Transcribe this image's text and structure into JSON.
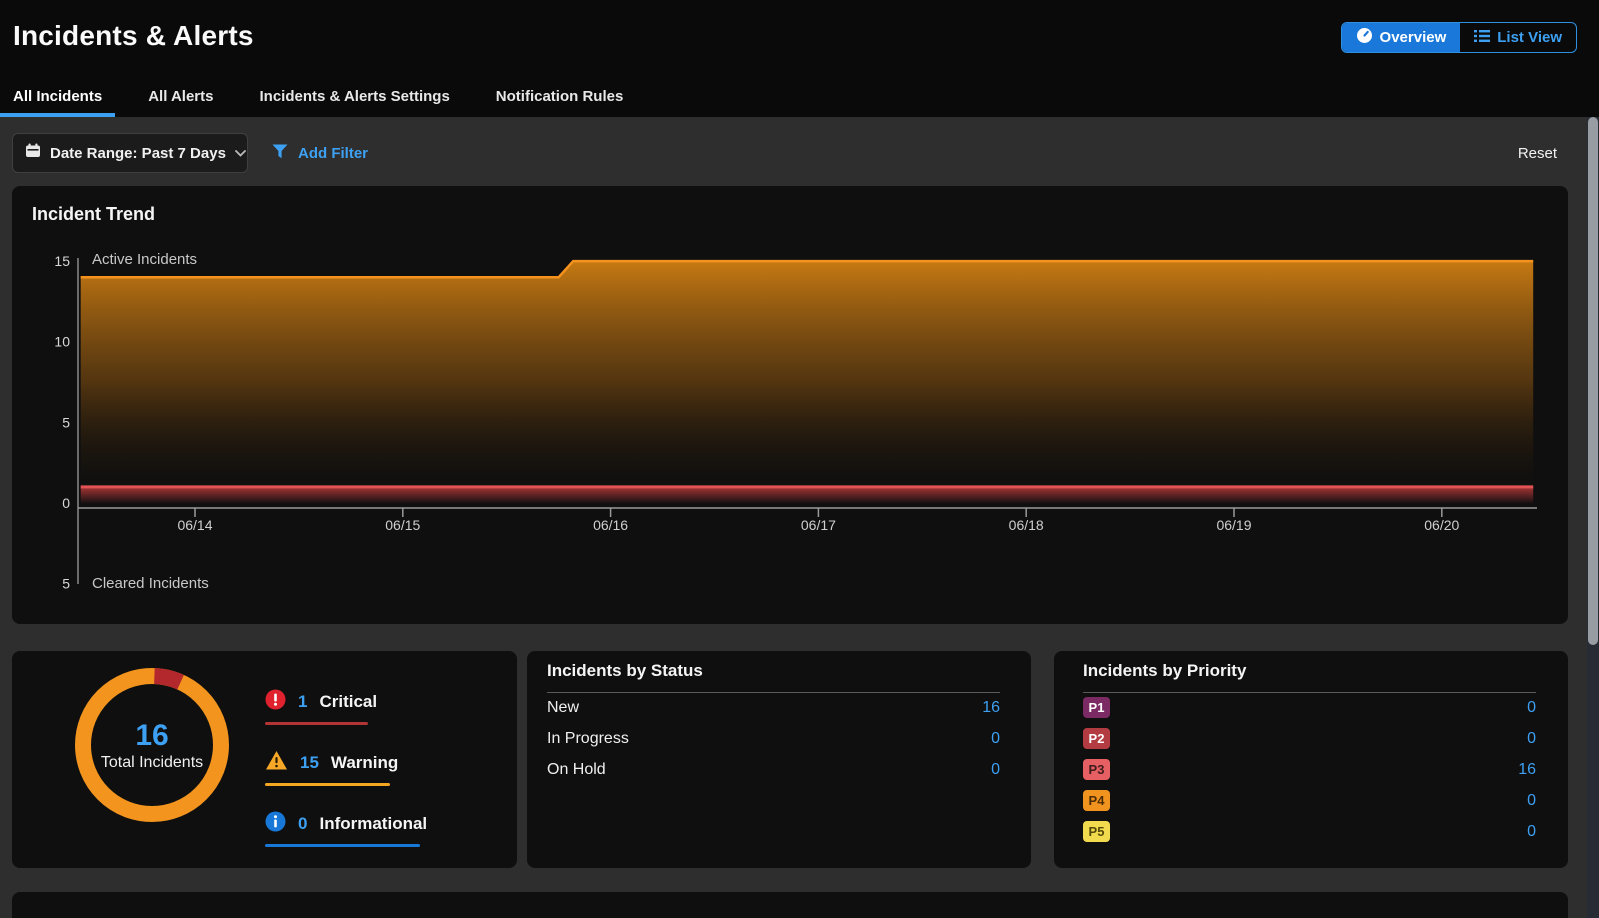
{
  "header": {
    "title": "Incidents & Alerts",
    "toggle": [
      {
        "label": "Overview",
        "active": true
      },
      {
        "label": "List View",
        "active": false
      }
    ]
  },
  "tabs": [
    {
      "label": "All Incidents",
      "active": true
    },
    {
      "label": "All Alerts",
      "active": false
    },
    {
      "label": "Incidents & Alerts Settings",
      "active": false
    },
    {
      "label": "Notification Rules",
      "active": false
    }
  ],
  "filter_bar": {
    "date_range": "Date Range: Past 7 Days",
    "add_filter": "Add Filter",
    "reset": "Reset"
  },
  "chart_data": {
    "type": "area",
    "title": "Incident Trend",
    "x_tick_labels": [
      "06/14",
      "06/15",
      "06/16",
      "06/17",
      "06/18",
      "06/19",
      "06/20"
    ],
    "y_ticks_top": [
      15,
      10,
      5,
      0
    ],
    "y_ticks_bottom": [
      5
    ],
    "top_axis_label": "Active Incidents",
    "bottom_axis_label": "Cleared Incidents",
    "ylim_top": [
      0,
      15
    ],
    "ylim_bottom": [
      0,
      5
    ],
    "grid": false,
    "legend_position": "none",
    "series": [
      {
        "name": "Active Incidents",
        "color": "#f5921e",
        "daily_values": [
          14,
          14,
          15,
          15,
          15,
          15,
          15
        ],
        "trace": [
          {
            "day": -0.55,
            "value": 14
          },
          {
            "day": 1.75,
            "value": 14
          },
          {
            "day": 1.82,
            "value": 15
          },
          {
            "day": 6.44,
            "value": 15
          }
        ]
      },
      {
        "name": "unlabeled-red-series",
        "color": "#e35353",
        "daily_values": [
          1,
          1,
          1,
          1,
          1,
          1,
          1
        ],
        "trace": [
          {
            "day": -0.55,
            "value": 1
          },
          {
            "day": 6.44,
            "value": 1
          }
        ]
      }
    ],
    "cleared_incidents_values": [
      0,
      0,
      0,
      0,
      0,
      0,
      0
    ]
  },
  "summary": {
    "total_value": 16,
    "total_label": "Total Incidents",
    "donut": {
      "ring_color": "#f2941d",
      "slice_color": "#b3282d"
    },
    "legend": [
      {
        "count": 1,
        "label": "Critical",
        "icon": "critical-circle-icon",
        "icon_color": "#e0222e",
        "underline_color": "#b23434",
        "underline_width": 103
      },
      {
        "count": 15,
        "label": "Warning",
        "icon": "warning-triangle-icon",
        "icon_color": "#f7a827",
        "underline_color": "#f5a623",
        "underline_width": 125
      },
      {
        "count": 0,
        "label": "Informational",
        "icon": "info-circle-icon",
        "icon_color": "#1878d8",
        "underline_color": "#1878d8",
        "underline_width": 155
      }
    ]
  },
  "status_card": {
    "title": "Incidents by Status",
    "rows": [
      {
        "label": "New",
        "value": 16
      },
      {
        "label": "In Progress",
        "value": 0
      },
      {
        "label": "On Hold",
        "value": 0
      }
    ]
  },
  "priority_card": {
    "title": "Incidents by Priority",
    "rows": [
      {
        "label": "P1",
        "value": 0,
        "badge_color": "#7c2a64",
        "badge_text_color": "#ffffff"
      },
      {
        "label": "P2",
        "value": 0,
        "badge_color": "#b23c41",
        "badge_text_color": "#ffffff"
      },
      {
        "label": "P3",
        "value": 16,
        "badge_color": "#e65f63",
        "badge_text_color": "#401b1c"
      },
      {
        "label": "P4",
        "value": 0,
        "badge_color": "#f0941f",
        "badge_text_color": "#4d2d03"
      },
      {
        "label": "P5",
        "value": 0,
        "badge_color": "#f2da4e",
        "badge_text_color": "#55490a"
      }
    ]
  },
  "colors": {
    "accent_blue": "#3da0f2",
    "toggle_active_bg": "#1978d9",
    "card_bg": "#0f0f10",
    "main_bg": "#2e2e2e"
  }
}
